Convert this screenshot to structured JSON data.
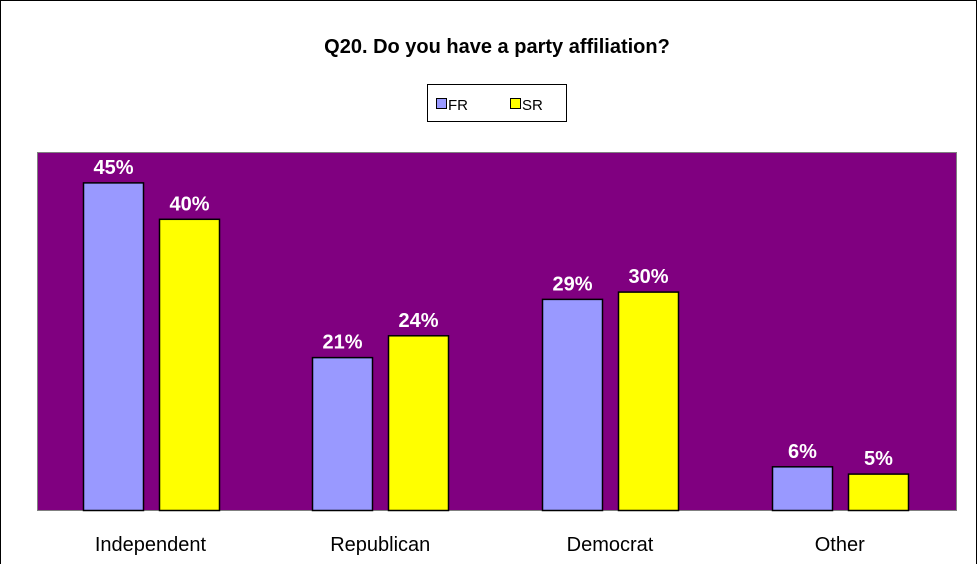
{
  "chart_data": {
    "type": "bar",
    "title": "Q20.  Do you have a party affiliation?",
    "xlabel": "",
    "ylabel": "",
    "categories": [
      "Independent",
      "Republican",
      "Democrat",
      "Other"
    ],
    "series": [
      {
        "name": "FR",
        "values": [
          45,
          21,
          29,
          6
        ],
        "labels": [
          "45%",
          "21%",
          "29%",
          "6%"
        ],
        "color": "#9999ff"
      },
      {
        "name": "SR",
        "values": [
          40,
          24,
          30,
          5
        ],
        "labels": [
          "40%",
          "24%",
          "30%",
          "5%"
        ],
        "color": "#ffff00"
      }
    ],
    "ylim": [
      0,
      50
    ],
    "grid": false,
    "legend_position": "top-center",
    "colors": {
      "plot_background": "#800080",
      "page_background": "#ffffff",
      "data_label": "#ffffff",
      "text": "#000000"
    }
  }
}
